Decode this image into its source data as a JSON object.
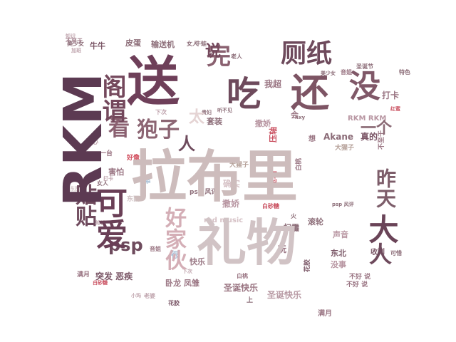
{
  "words": [
    {
      "text": "拉布里",
      "color": "#cdbcbc",
      "weight": 100
    },
    {
      "text": "礼物",
      "color": "#d1c3c5",
      "weight": 88
    },
    {
      "text": "送",
      "color": "#6e3f59",
      "weight": 84
    },
    {
      "text": "吃",
      "color": "#6e4a5c",
      "weight": 76
    },
    {
      "text": "还",
      "color": "#7d5464",
      "weight": 70
    },
    {
      "text": "没",
      "color": "#805868",
      "weight": 60
    },
    {
      "text": "RKM",
      "color": "#5c3a52",
      "weight": 72
    },
    {
      "text": "完",
      "color": "#8a6170",
      "weight": 46
    },
    {
      "text": "厕纸",
      "color": "#6e4a5c",
      "weight": 46
    },
    {
      "text": "说",
      "color": "#74485c",
      "weight": 30
    },
    {
      "text": "看",
      "color": "#8a6070",
      "weight": 36
    },
    {
      "text": "狍子",
      "color": "#8c6573",
      "weight": 36
    },
    {
      "text": "阁谓",
      "color": "#74485c",
      "weight": 40
    },
    {
      "text": "可爱",
      "color": "#6a3f56",
      "weight": 46
    },
    {
      "text": "贴贴",
      "color": "#6f4a5d",
      "weight": 38
    },
    {
      "text": "psp",
      "color": "#6e4b5d",
      "weight": 26
    },
    {
      "text": "大",
      "color": "#6a4458",
      "weight": 40
    },
    {
      "text": "人",
      "color": "#6e4a5c",
      "weight": 32
    },
    {
      "text": "昨天",
      "color": "#7d5d6a",
      "weight": 28
    },
    {
      "text": "好家伙",
      "color": "#d4aeb6",
      "weight": 30
    },
    {
      "text": "一个",
      "color": "#8b6a75",
      "weight": 20
    },
    {
      "text": "太",
      "color": "#e5d4d4",
      "weight": 20
    },
    {
      "text": "Akane",
      "color": "#8a6a76",
      "weight": 12
    },
    {
      "text": "真的",
      "color": "#7a5465",
      "weight": 12
    },
    {
      "text": "圣诞快乐",
      "color": "#9a7582",
      "weight": 12
    },
    {
      "text": "圣诞快乐",
      "color": "#b89aa4",
      "weight": 12
    },
    {
      "text": "突发 恶疾",
      "color": "#7a5666",
      "weight": 12
    },
    {
      "text": "卧龙 凤雏",
      "color": "#9a7583",
      "weight": 11
    },
    {
      "text": "害怕",
      "color": "#9a7583",
      "weight": 11
    },
    {
      "text": "套装",
      "color": "#8d6e79",
      "weight": 11
    },
    {
      "text": "快乐",
      "color": "#9b7a86",
      "weight": 11
    },
    {
      "text": "牛牛",
      "color": "#7a5666",
      "weight": 11
    },
    {
      "text": "皮蛋",
      "color": "#8d6e79",
      "weight": 11
    },
    {
      "text": "输送机",
      "color": "#8d6e79",
      "weight": 11
    },
    {
      "text": "扫雷",
      "color": "#8d6e79",
      "weight": 11
    },
    {
      "text": "滚轮",
      "color": "#8d6e79",
      "weight": 11
    },
    {
      "text": "声音",
      "color": "#b896a2",
      "weight": 11
    },
    {
      "text": "东北",
      "color": "#7a5666",
      "weight": 11
    },
    {
      "text": "收到",
      "color": "#7a5666",
      "weight": 10
    },
    {
      "text": "没事",
      "color": "#b896a2",
      "weight": 11
    },
    {
      "text": "压轴",
      "color": "#c94f5f",
      "weight": 11
    },
    {
      "text": "确实",
      "color": "#d6c2c6",
      "weight": 12
    },
    {
      "text": "撒娇",
      "color": "#b896a2",
      "weight": 12
    },
    {
      "text": "我超",
      "color": "#9a7583",
      "weight": 11
    },
    {
      "text": "打卡",
      "color": "#9a7583",
      "weight": 11
    },
    {
      "text": "RKM RKM",
      "color": "#b896a2",
      "weight": 9
    },
    {
      "text": "red music",
      "color": "#d6c2c6",
      "weight": 10
    },
    {
      "text": "好像",
      "color": "#d04a5a",
      "weight": 9
    },
    {
      "text": "大猩子",
      "color": "#b5a098",
      "weight": 9
    },
    {
      "text": "牛蛙",
      "color": "#8d6e79",
      "weight": 8
    },
    {
      "text": "圣诞节",
      "color": "#8d6e79",
      "weight": 8
    },
    {
      "text": "东西",
      "color": "#d1c3c5",
      "weight": 9
    },
    {
      "text": "白桃",
      "color": "#9a7583",
      "weight": 8
    },
    {
      "text": "一台",
      "color": "#9a7583",
      "weight": 9
    },
    {
      "text": "老婆",
      "color": "#c0a5ae",
      "weight": 8
    },
    {
      "text": "不好 说",
      "color": "#9a7583",
      "weight": 9
    },
    {
      "text": "满月",
      "color": "#9a7583",
      "weight": 9
    },
    {
      "text": "不至于",
      "color": "#9a7583",
      "weight": 7
    },
    {
      "text": "花胶",
      "color": "#7a5666",
      "weight": 9
    },
    {
      "text": "很",
      "color": "#a8bfd6",
      "weight": 12
    },
    {
      "text": "音姐",
      "color": "#9a7583",
      "weight": 8
    },
    {
      "text": "会",
      "color": "#9a7583",
      "weight": 10
    },
    {
      "text": "想",
      "color": "#9a7583",
      "weight": 10
    },
    {
      "text": "玩",
      "color": "#9a7583",
      "weight": 9
    },
    {
      "text": "上",
      "color": "#8d6e79",
      "weight": 12
    },
    {
      "text": "火",
      "color": "#8d6e79",
      "weight": 9
    },
    {
      "text": "特色",
      "color": "#8d6e79",
      "weight": 8
    },
    {
      "text": "可惜",
      "color": "#8d6e79",
      "weight": 8
    },
    {
      "text": "老人",
      "color": "#8d6e79",
      "weight": 8
    },
    {
      "text": "女人",
      "color": "#8d6e79",
      "weight": 8
    },
    {
      "text": "美少女",
      "color": "#8d6e79",
      "weight": 7
    },
    {
      "text": "贵妇",
      "color": "#8d6e79",
      "weight": 8
    },
    {
      "text": "听不见",
      "color": "#8d6e79",
      "weight": 7
    },
    {
      "text": "hxy",
      "color": "#8d6e79",
      "weight": 7
    },
    {
      "text": "psp 风评",
      "color": "#8d6e79",
      "weight": 7
    },
    {
      "text": "红蜜",
      "color": "#c94f5f",
      "weight": 8
    },
    {
      "text": "知识",
      "color": "#c0a5ae",
      "weight": 7
    },
    {
      "text": "下次",
      "color": "#c0a5ae",
      "weight": 7
    },
    {
      "text": "小玛",
      "color": "#c0a5ae",
      "weight": 7
    },
    {
      "text": "加班",
      "color": "#c0a5ae",
      "weight": 7
    },
    {
      "text": "打卡",
      "color": "#c0a5ae",
      "weight": 7
    },
    {
      "text": "白砂糖",
      "color": "#c94f5f",
      "weight": 7
    },
    {
      "text": "开心",
      "color": "#c0a5ae",
      "weight": 7
    },
    {
      "text": "点",
      "color": "#c0a5ae",
      "weight": 7
    }
  ]
}
